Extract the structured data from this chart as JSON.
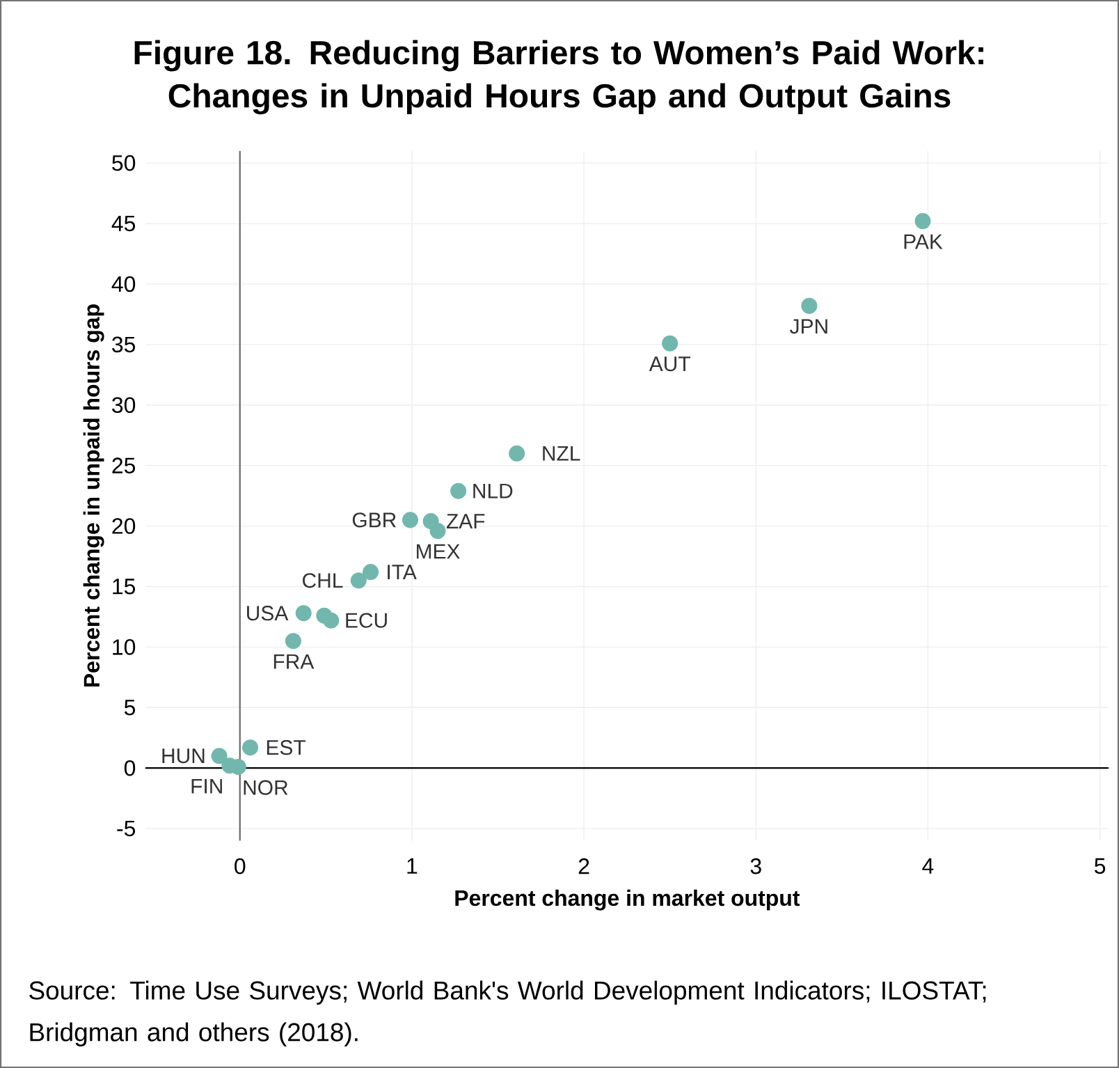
{
  "chart_data": {
    "type": "scatter",
    "title": "Figure 18. Reducing Barriers to Women’s Paid Work: Changes in Unpaid Hours Gap and Output Gains",
    "xlabel": "Percent change in market output",
    "ylabel": "Percent change in unpaid hours gap",
    "x": [
      3.97,
      3.31,
      2.5,
      1.61,
      1.27,
      0.99,
      1.11,
      1.15,
      0.76,
      0.69,
      0.37,
      0.49,
      0.53,
      0.31,
      0.06,
      -0.12,
      -0.06,
      -0.01
    ],
    "values": [
      45.2,
      38.2,
      35.1,
      26.0,
      22.9,
      20.5,
      20.4,
      19.6,
      16.2,
      15.5,
      12.8,
      12.6,
      12.2,
      10.5,
      1.7,
      1.0,
      0.2,
      0.1
    ],
    "color": "#72b7ae",
    "marker": "circle",
    "xlim": [
      -0.55,
      5.05
    ],
    "ylim": [
      -6,
      51
    ],
    "xticks": [
      0,
      1,
      2,
      3,
      4,
      5
    ],
    "yticks": [
      -5,
      0,
      5,
      10,
      15,
      20,
      25,
      30,
      35,
      40,
      45,
      50
    ],
    "grid": true,
    "annotations": [
      {
        "text": "PAK",
        "x": 3.97,
        "y": 45.2
      },
      {
        "text": "JPN",
        "x": 3.31,
        "y": 38.2
      },
      {
        "text": "AUT",
        "x": 2.5,
        "y": 35.1
      },
      {
        "text": "NZL",
        "x": 1.61,
        "y": 26.0
      },
      {
        "text": "NLD",
        "x": 1.27,
        "y": 22.9
      },
      {
        "text": "GBR",
        "x": 0.99,
        "y": 20.5
      },
      {
        "text": "ZAF",
        "x": 1.11,
        "y": 20.4
      },
      {
        "text": "MEX",
        "x": 1.15,
        "y": 19.6
      },
      {
        "text": "ITA",
        "x": 0.76,
        "y": 16.2
      },
      {
        "text": "CHL",
        "x": 0.69,
        "y": 15.5
      },
      {
        "text": "USA",
        "x": 0.37,
        "y": 12.8
      },
      {
        "text": "ECU",
        "x": 0.53,
        "y": 12.2
      },
      {
        "text": "FRA",
        "x": 0.31,
        "y": 10.5
      },
      {
        "text": "EST",
        "x": 0.06,
        "y": 1.7
      },
      {
        "text": "HUN",
        "x": -0.12,
        "y": 1.0
      },
      {
        "text": "FIN",
        "x": -0.06,
        "y": 0.2
      },
      {
        "text": "NOR",
        "x": -0.01,
        "y": 0.1
      },
      "Source: Time Use Surveys; World Bank's World Development Indicators; ILOSTAT; Bridgman and others (2018)."
    ]
  }
}
